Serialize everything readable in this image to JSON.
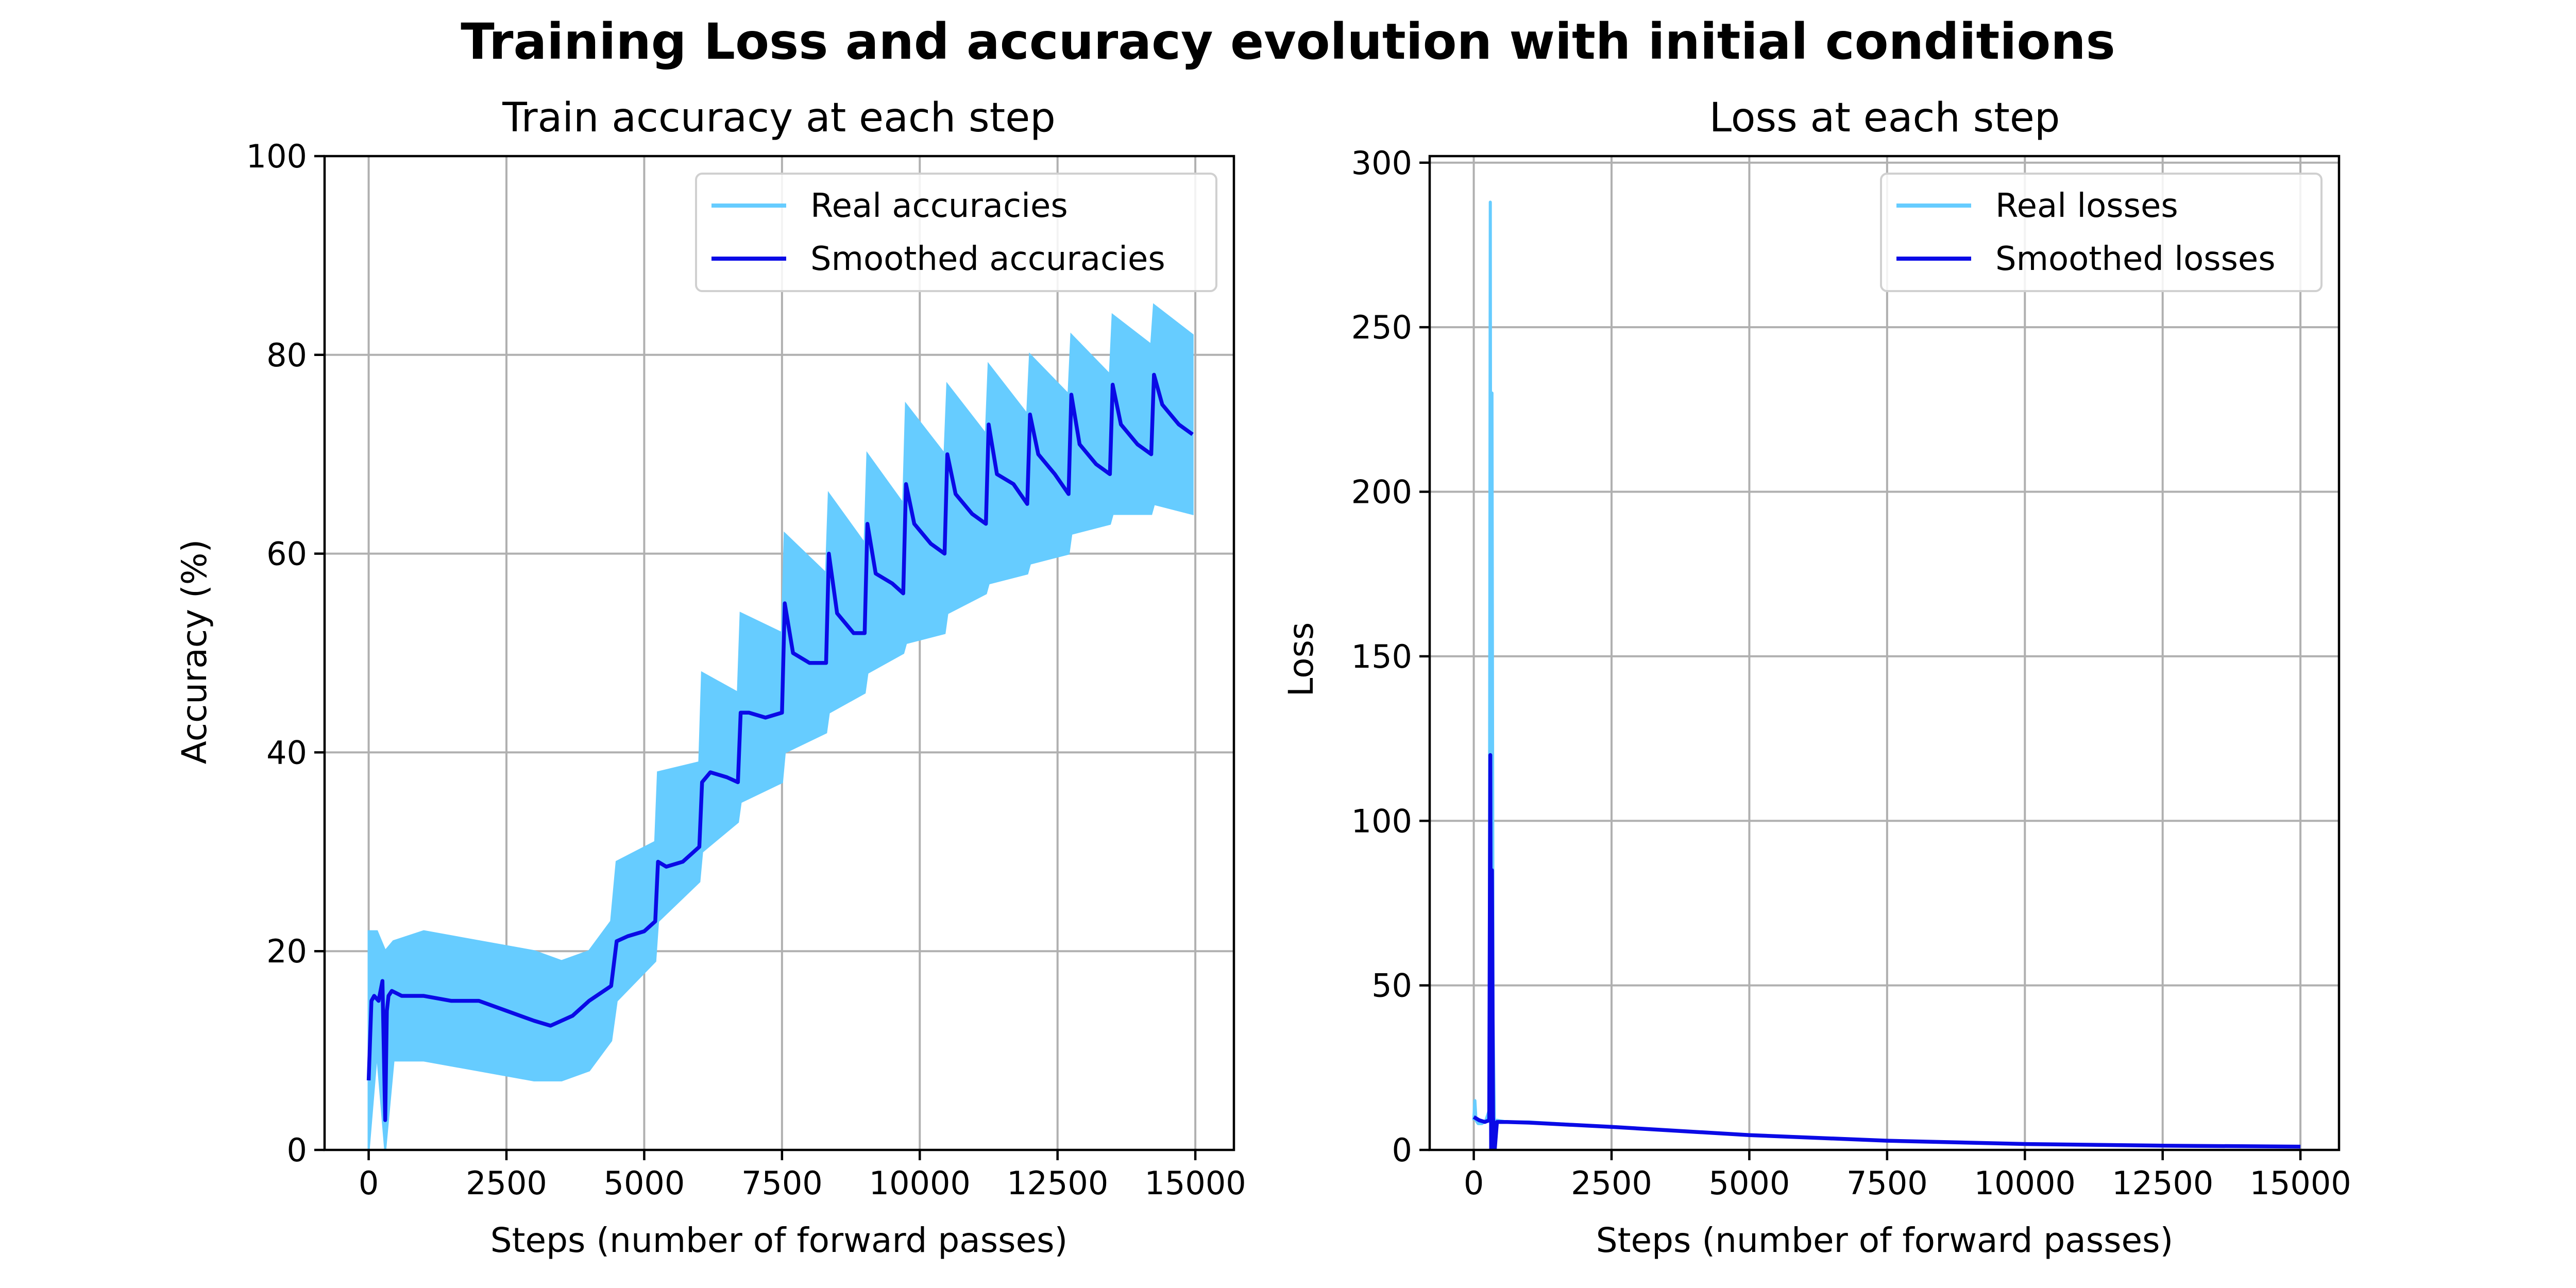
{
  "figure": {
    "title": "Training Loss and accuracy evolution with initial conditions"
  },
  "chart_data": [
    {
      "type": "line",
      "title": "Train accuracy at each step",
      "xlabel": "Steps (number of forward passes)",
      "ylabel": "Accuracy (%)",
      "xlim": [
        -800,
        15700
      ],
      "ylim": [
        0,
        100
      ],
      "xticks": [
        "0",
        "2500",
        "5000",
        "7500",
        "10000",
        "12500",
        "15000"
      ],
      "yticks": [
        "0",
        "20",
        "40",
        "60",
        "80",
        "100"
      ],
      "grid": true,
      "legend": "top-right",
      "series": [
        {
          "name": "Real accuracies",
          "color": "#66ccff",
          "band": true,
          "x": [
            0,
            150,
            300,
            450,
            1000,
            2000,
            3000,
            3500,
            4000,
            4400,
            4500,
            5200,
            5250,
            6000,
            6050,
            6700,
            6750,
            7500,
            7550,
            8300,
            8350,
            9000,
            9050,
            9700,
            9750,
            10450,
            10500,
            11200,
            11250,
            11950,
            12000,
            12700,
            12750,
            13450,
            13500,
            14200,
            14250,
            14950
          ],
          "low": [
            0,
            10,
            0,
            9,
            9,
            8,
            7,
            7,
            8,
            11,
            15,
            19,
            23,
            27,
            30,
            33,
            35,
            37,
            40,
            42,
            44,
            46,
            48,
            50,
            51,
            52,
            54,
            56,
            57,
            58,
            59,
            60,
            62,
            63,
            64,
            64,
            65,
            64
          ],
          "high": [
            22,
            22,
            20,
            21,
            22,
            21,
            20,
            19,
            20,
            23,
            29,
            31,
            38,
            39,
            48,
            46,
            54,
            52,
            62,
            58,
            66,
            61,
            70,
            65,
            75,
            70,
            77,
            72,
            79,
            74,
            80,
            76,
            82,
            78,
            84,
            81,
            85,
            82
          ]
        },
        {
          "name": "Smoothed accuracies",
          "color": "#0a0ae6",
          "x": [
            0,
            50,
            100,
            180,
            250,
            300,
            330,
            360,
            420,
            600,
            1000,
            1500,
            2000,
            2500,
            3000,
            3300,
            3700,
            4000,
            4400,
            4500,
            4700,
            5000,
            5200,
            5250,
            5400,
            5700,
            6000,
            6050,
            6200,
            6500,
            6700,
            6750,
            6900,
            7200,
            7500,
            7550,
            7700,
            8000,
            8300,
            8350,
            8500,
            8800,
            9000,
            9050,
            9200,
            9500,
            9700,
            9750,
            9900,
            10200,
            10450,
            10500,
            10650,
            10950,
            11200,
            11250,
            11400,
            11700,
            11950,
            12000,
            12150,
            12450,
            12700,
            12750,
            12900,
            13200,
            13450,
            13500,
            13650,
            13950,
            14200,
            14250,
            14400,
            14700,
            14950
          ],
          "y": [
            7,
            15,
            15.5,
            15,
            17,
            3,
            14,
            15.5,
            16,
            15.5,
            15.5,
            15,
            15,
            14,
            13,
            12.5,
            13.5,
            15,
            16.5,
            21,
            21.5,
            22,
            23,
            29,
            28.5,
            29,
            30.5,
            37,
            38,
            37.5,
            37,
            44,
            44,
            43.5,
            44,
            55,
            50,
            49,
            49,
            60,
            54,
            52,
            52,
            63,
            58,
            57,
            56,
            67,
            63,
            61,
            60,
            70,
            66,
            64,
            63,
            73,
            68,
            67,
            65,
            74,
            70,
            68,
            66,
            76,
            71,
            69,
            68,
            77,
            73,
            71,
            70,
            78,
            75,
            73,
            72
          ]
        }
      ]
    },
    {
      "type": "line",
      "title": "Loss at each step",
      "xlabel": "Steps (number of forward passes)",
      "ylabel": "Loss",
      "xlim": [
        -800,
        15700
      ],
      "ylim": [
        0,
        302
      ],
      "xticks": [
        "0",
        "2500",
        "5000",
        "7500",
        "10000",
        "12500",
        "15000"
      ],
      "yticks": [
        "0",
        "50",
        "100",
        "150",
        "200",
        "250",
        "300"
      ],
      "grid": true,
      "legend": "top-right",
      "series": [
        {
          "name": "Real losses",
          "color": "#66ccff",
          "x": [
            0,
            20,
            40,
            80,
            150,
            220,
            280,
            300,
            315,
            330,
            350,
            380,
            420,
            600,
            1000,
            2500,
            5000,
            7500,
            10000,
            12500,
            15000
          ],
          "y": [
            9,
            15,
            9,
            8,
            8,
            9,
            12,
            288,
            0,
            230,
            40,
            0,
            9,
            8.5,
            8.5,
            7,
            4.5,
            2.8,
            1.8,
            1.2,
            1.0
          ]
        },
        {
          "name": "Smoothed losses",
          "color": "#0a0ae6",
          "x": [
            0,
            100,
            200,
            280,
            300,
            315,
            330,
            350,
            380,
            420,
            600,
            1000,
            2500,
            5000,
            7500,
            10000,
            12500,
            15000
          ],
          "y": [
            10,
            9,
            8.5,
            9,
            120,
            0,
            85,
            10,
            0,
            8.5,
            8.5,
            8.3,
            7,
            4.5,
            2.8,
            1.8,
            1.3,
            1.0
          ]
        }
      ]
    }
  ]
}
